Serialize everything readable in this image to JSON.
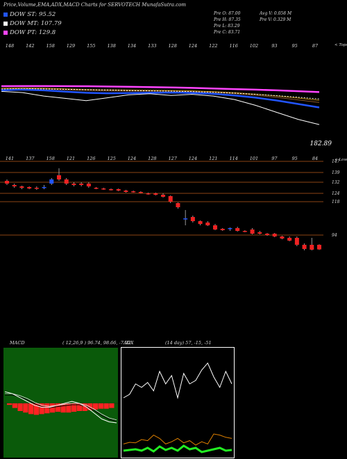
{
  "header": {
    "title": "Price,Volume,EMA,ADX,MACD Charts for SERVOTECH MunafaSutra.com"
  },
  "legend": [
    {
      "label": "DOW ST: 95.52",
      "color": "#2255ff"
    },
    {
      "label": "DOW MT: 107.79",
      "color": "#ffffff"
    },
    {
      "label": "DOW PT: 129.8",
      "color": "#ff44ff"
    }
  ],
  "stats": {
    "o": "Pre O: 87.00",
    "h": "Pre H: 87.35",
    "l": "Pre L: 83.29",
    "c": "Pre C: 83.71",
    "avgv": "Avg V: 0.058 M",
    "prev": "Pre V: 0.329 M"
  },
  "colors": {
    "up": "#2255ff",
    "down": "#ee2222",
    "ema_short": "#2255ff",
    "ema_pt": "#ff44ff",
    "ema_mid": "#b8860b",
    "grid": "#8b4513"
  },
  "top_panel": {
    "top_label": "< Tops",
    "last_price": "182.89"
  },
  "chart_data": [
    {
      "type": "line",
      "name": "price-ema-panel",
      "top_labels": [
        "148",
        "142",
        "158",
        "129",
        "155",
        "138",
        "134",
        "133",
        "128",
        "124",
        "122",
        "116",
        "102",
        "93",
        "95",
        "87"
      ],
      "series": [
        {
          "key": "pt",
          "values": [
            128.5,
            128.6,
            128.6,
            128.5,
            128.4,
            128.2,
            128.0,
            127.7,
            127.4,
            127.0,
            126.5,
            126.0,
            125.5,
            124.9,
            124.2,
            123.4
          ]
        },
        {
          "key": "mt",
          "values": [
            126.0,
            126.2,
            126.1,
            125.8,
            125.5,
            125.2,
            124.8,
            124.5,
            124.2,
            123.8,
            123.2,
            122.5,
            121.5,
            120.3,
            119.0,
            117.5
          ]
        },
        {
          "key": "st",
          "values": [
            125.0,
            125.5,
            124.9,
            123.8,
            122.8,
            122.4,
            122.5,
            122.8,
            123.0,
            122.7,
            121.9,
            120.5,
            118.6,
            116.2,
            113.2,
            110.2
          ]
        },
        {
          "key": "price",
          "values": [
            124.0,
            123.0,
            120.0,
            118.0,
            116.0,
            118.5,
            121.0,
            122.0,
            120.5,
            121.5,
            120.0,
            117.0,
            112.0,
            106.0,
            100.0,
            95.5
          ]
        }
      ]
    },
    {
      "type": "bar",
      "name": "candles-panel",
      "lows_label": "< Lows",
      "low_labels": [
        "141",
        "137",
        "158",
        "121",
        "126",
        "125",
        "124",
        "128",
        "127",
        "124",
        "121",
        "114",
        "101",
        "97",
        "95",
        "84"
      ],
      "ylabels": [
        "147",
        "139",
        "132",
        "124",
        "118",
        "94"
      ],
      "ylevels": [
        147,
        139,
        132,
        124,
        118,
        94
      ],
      "candles": [
        {
          "o": 133,
          "c": 131,
          "h": 134,
          "l": 130,
          "dir": "down"
        },
        {
          "o": 130,
          "c": 129,
          "h": 131,
          "l": 128,
          "dir": "down"
        },
        {
          "o": 129,
          "c": 128,
          "h": 129.5,
          "l": 127,
          "dir": "down"
        },
        {
          "o": 128.5,
          "c": 127.5,
          "h": 129,
          "l": 127,
          "dir": "down"
        },
        {
          "o": 128,
          "c": 127.5,
          "h": 129,
          "l": 126.5,
          "dir": "down"
        },
        {
          "o": 128,
          "c": 128.5,
          "h": 130,
          "l": 127,
          "dir": "up"
        },
        {
          "o": 131,
          "c": 134,
          "h": 135,
          "l": 130,
          "dir": "up"
        },
        {
          "o": 137,
          "c": 134,
          "h": 142,
          "l": 133,
          "dir": "down"
        },
        {
          "o": 134,
          "c": 131,
          "h": 135,
          "l": 130,
          "dir": "down"
        },
        {
          "o": 131,
          "c": 130,
          "h": 132,
          "l": 129,
          "dir": "down"
        },
        {
          "o": 131,
          "c": 130,
          "h": 132,
          "l": 129,
          "dir": "down"
        },
        {
          "o": 131,
          "c": 129,
          "h": 132,
          "l": 128,
          "dir": "down"
        },
        {
          "o": 128,
          "c": 127.5,
          "h": 128.5,
          "l": 127,
          "dir": "down"
        },
        {
          "o": 127.5,
          "c": 127,
          "h": 128,
          "l": 126.5,
          "dir": "down"
        },
        {
          "o": 127,
          "c": 126.5,
          "h": 127.5,
          "l": 126,
          "dir": "down"
        },
        {
          "o": 127,
          "c": 126,
          "h": 127.5,
          "l": 125.5,
          "dir": "down"
        },
        {
          "o": 126,
          "c": 125,
          "h": 126.5,
          "l": 124.5,
          "dir": "down"
        },
        {
          "o": 125.5,
          "c": 125,
          "h": 126,
          "l": 124.5,
          "dir": "down"
        },
        {
          "o": 125,
          "c": 124.5,
          "h": 125.5,
          "l": 124,
          "dir": "down"
        },
        {
          "o": 124,
          "c": 123.5,
          "h": 124.5,
          "l": 123,
          "dir": "down"
        },
        {
          "o": 124,
          "c": 123,
          "h": 124.5,
          "l": 122.5,
          "dir": "down"
        },
        {
          "o": 123,
          "c": 121.5,
          "h": 124,
          "l": 121,
          "dir": "down"
        },
        {
          "o": 122,
          "c": 118,
          "h": 122.5,
          "l": 117,
          "dir": "down"
        },
        {
          "o": 117,
          "c": 114,
          "h": 117.5,
          "l": 113,
          "dir": "down"
        },
        {
          "o": 106,
          "c": 106,
          "h": 112,
          "l": 101,
          "dir": "up"
        },
        {
          "o": 107,
          "c": 104,
          "h": 108,
          "l": 103,
          "dir": "down"
        },
        {
          "o": 104,
          "c": 102,
          "h": 104.5,
          "l": 101,
          "dir": "down"
        },
        {
          "o": 103,
          "c": 101,
          "h": 104,
          "l": 100.5,
          "dir": "down"
        },
        {
          "o": 101,
          "c": 98,
          "h": 102,
          "l": 97.5,
          "dir": "down"
        },
        {
          "o": 98.5,
          "c": 97.5,
          "h": 99,
          "l": 97,
          "dir": "down"
        },
        {
          "o": 98.5,
          "c": 99,
          "h": 99.5,
          "l": 97,
          "dir": "up"
        },
        {
          "o": 99,
          "c": 97,
          "h": 100,
          "l": 96.5,
          "dir": "down"
        },
        {
          "o": 97,
          "c": 96.5,
          "h": 97.5,
          "l": 96,
          "dir": "down"
        },
        {
          "o": 98,
          "c": 95,
          "h": 99,
          "l": 94.5,
          "dir": "down"
        },
        {
          "o": 96,
          "c": 95,
          "h": 97,
          "l": 94.5,
          "dir": "down"
        },
        {
          "o": 95,
          "c": 94,
          "h": 95.5,
          "l": 93.5,
          "dir": "down"
        },
        {
          "o": 95,
          "c": 93,
          "h": 95.5,
          "l": 92.5,
          "dir": "down"
        },
        {
          "o": 93,
          "c": 91.5,
          "h": 93.5,
          "l": 91,
          "dir": "down"
        },
        {
          "o": 92,
          "c": 90,
          "h": 93,
          "l": 89.5,
          "dir": "down"
        },
        {
          "o": 92,
          "c": 87,
          "h": 93,
          "l": 86,
          "dir": "down"
        },
        {
          "o": 87,
          "c": 84,
          "h": 88,
          "l": 83,
          "dir": "down"
        },
        {
          "o": 87,
          "c": 83.5,
          "h": 92,
          "l": 83,
          "dir": "down"
        },
        {
          "o": 87,
          "c": 83.7,
          "h": 87.35,
          "l": 83.29,
          "dir": "down"
        }
      ]
    },
    {
      "type": "line",
      "name": "macd-panel",
      "title": "MACD",
      "values_text": "( 12,26,9 ) 96.74, 98.66, -7.92",
      "macd": [
        0.6,
        0.5,
        0.3,
        0.1,
        -0.1,
        -0.2,
        -0.2,
        -0.1,
        0.0,
        0.1,
        0.0,
        -0.2,
        -0.5,
        -0.8,
        -0.95,
        -1.0
      ],
      "signal": [
        0.5,
        0.5,
        0.4,
        0.25,
        0.05,
        -0.1,
        -0.15,
        -0.1,
        -0.05,
        0.0,
        0.0,
        -0.1,
        -0.3,
        -0.55,
        -0.75,
        -0.85
      ],
      "hist": [
        -0.1,
        -0.3,
        -0.5,
        -0.6,
        -0.7,
        -0.75,
        -0.7,
        -0.65,
        -0.6,
        -0.55,
        -0.6,
        -0.6,
        -0.55,
        -0.5,
        -0.5,
        -0.45,
        -0.4,
        -0.35,
        -0.35,
        -0.3
      ]
    },
    {
      "type": "line",
      "name": "adx-panel",
      "title": "ADX",
      "values_text": "(14 day) 57, -15, -51",
      "minus_di": [
        40,
        45,
        60,
        55,
        62,
        50,
        78,
        60,
        72,
        40,
        75,
        60,
        65,
        80,
        90,
        70,
        55,
        78,
        60
      ],
      "plus_di": [
        12,
        15,
        14,
        20,
        18,
        28,
        22,
        12,
        16,
        22,
        14,
        18,
        10,
        16,
        12,
        30,
        28,
        24,
        22
      ],
      "adx": [
        8,
        9,
        10,
        8,
        12,
        7,
        14,
        9,
        12,
        8,
        15,
        10,
        12,
        6,
        8,
        10,
        12,
        8,
        9
      ]
    }
  ]
}
